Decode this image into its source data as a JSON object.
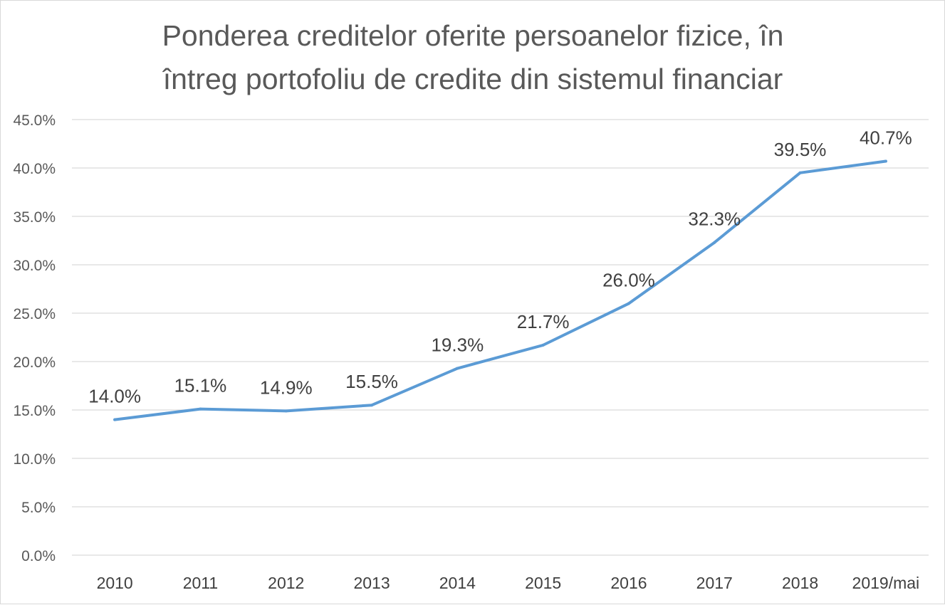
{
  "chart_data": {
    "type": "line",
    "title_lines": [
      "Ponderea creditelor oferite persoanelor fizice, în",
      "întreg portofoliu de credite din sistemul financiar"
    ],
    "categories": [
      "2010",
      "2011",
      "2012",
      "2013",
      "2014",
      "2015",
      "2016",
      "2017",
      "2018",
      "2019/mai"
    ],
    "series": [
      {
        "values": [
          14.0,
          15.1,
          14.9,
          15.5,
          19.3,
          21.7,
          26.0,
          32.3,
          39.5,
          40.7
        ],
        "labels": [
          "14.0%",
          "15.1%",
          "14.9%",
          "15.5%",
          "19.3%",
          "21.7%",
          "26.0%",
          "32.3%",
          "39.5%",
          "40.7%"
        ],
        "color": "#5b9bd5"
      }
    ],
    "ylim": [
      0,
      45
    ],
    "ytick_values": [
      0,
      5,
      10,
      15,
      20,
      25,
      30,
      35,
      40,
      45
    ],
    "ytick_labels": [
      "0.0%",
      "5.0%",
      "10.0%",
      "15.0%",
      "20.0%",
      "25.0%",
      "30.0%",
      "35.0%",
      "40.0%",
      "45.0%"
    ],
    "grid": true,
    "legend": "none"
  }
}
